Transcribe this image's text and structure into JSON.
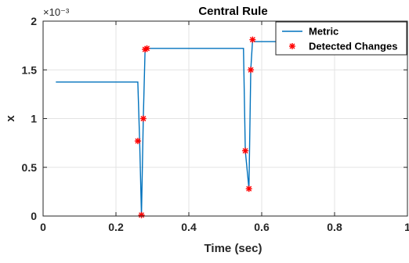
{
  "chart_data": {
    "type": "line",
    "title": "Central Rule",
    "xlabel": "Time (sec)",
    "ylabel": "x",
    "y_exponent_label": "×10⁻³",
    "xlim": [
      0,
      1
    ],
    "ylim": [
      0,
      2
    ],
    "x_ticks": [
      0,
      0.2,
      0.4,
      0.6,
      0.8,
      1
    ],
    "x_tick_labels": [
      "0",
      "0.2",
      "0.4",
      "0.6",
      "0.8",
      "1"
    ],
    "y_ticks": [
      0,
      0.5,
      1,
      1.5,
      2
    ],
    "y_tick_labels": [
      "0",
      "0.5",
      "1",
      "1.5",
      "2"
    ],
    "grid": true,
    "legend_position": "top-right",
    "series": [
      {
        "name": "Metric",
        "kind": "line",
        "color": "#0072BD",
        "x": [
          0.035,
          0.26,
          0.265,
          0.27,
          0.275,
          0.28,
          0.285,
          0.29,
          0.55,
          0.555,
          0.565,
          0.57,
          0.575,
          0.58,
          0.585,
          0.63,
          0.63,
          1.0
        ],
        "y": [
          1.375,
          1.375,
          0.77,
          0.01,
          1.0,
          1.72,
          1.72,
          1.72,
          1.72,
          0.67,
          0.28,
          1.5,
          1.81,
          1.79,
          1.79,
          1.79,
          1.79,
          1.79
        ]
      },
      {
        "name": "Detected Changes",
        "kind": "marker",
        "color": "#FF0000",
        "marker": "asterisk",
        "x": [
          0.26,
          0.27,
          0.275,
          0.28,
          0.285,
          0.555,
          0.565,
          0.57,
          0.575
        ],
        "y": [
          0.77,
          0.01,
          1.0,
          1.71,
          1.72,
          0.67,
          0.28,
          1.5,
          1.81
        ]
      }
    ]
  }
}
